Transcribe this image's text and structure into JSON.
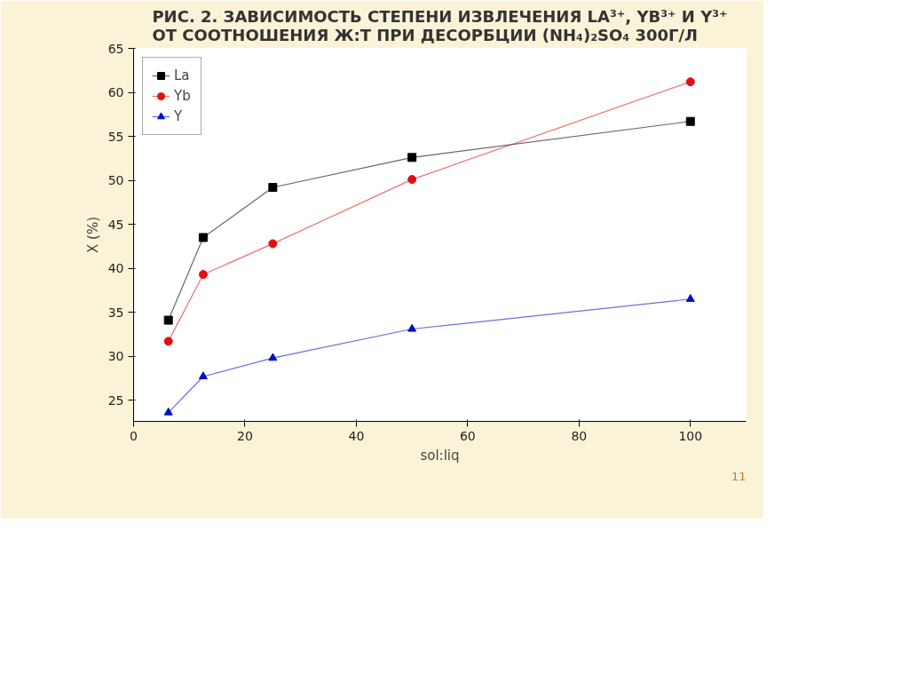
{
  "chart_data": {
    "type": "line",
    "title": "РИС. 2. ЗАВИСИМОСТЬ СТЕПЕНИ ИЗВЛЕЧЕНИЯ LA³⁺, YB³⁺ И Y³⁺ ОТ СООТНОШЕНИЯ Ж:Т ПРИ ДЕСОРБЦИИ (NH₄)₂SO₄ 300Г/Л",
    "xlabel": "sol:liq",
    "ylabel": "X (%)",
    "x": [
      6.25,
      12.5,
      25,
      50,
      100
    ],
    "series": [
      {
        "name": "La",
        "color": "#000000",
        "marker": "square",
        "values": [
          34.1,
          43.5,
          49.2,
          52.6,
          56.7
        ]
      },
      {
        "name": "Yb",
        "color": "#e01010",
        "marker": "circle",
        "values": [
          31.7,
          39.3,
          42.8,
          50.1,
          61.2
        ]
      },
      {
        "name": "Y",
        "color": "#0010c0",
        "marker": "triangle",
        "values": [
          23.6,
          27.7,
          29.8,
          33.1,
          36.5
        ]
      }
    ],
    "xlim": [
      0,
      110
    ],
    "xticks": [
      0,
      20,
      40,
      60,
      80,
      100
    ],
    "ylim": [
      22.6,
      65
    ],
    "yticks": [
      25,
      30,
      35,
      40,
      45,
      50,
      55,
      60,
      65
    ],
    "grid": false,
    "legend": "top left",
    "annotations": [
      "11"
    ]
  }
}
